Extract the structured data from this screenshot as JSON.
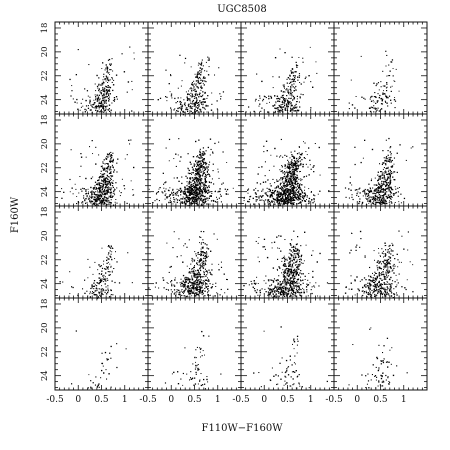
{
  "chart_data": {
    "type": "scatter",
    "title": "UGC8508",
    "xlabel": "F110W−F160W",
    "ylabel": "F160W",
    "xlim": [
      -0.5,
      1.5
    ],
    "ylim": [
      25.2,
      17.5
    ],
    "y_inverted": true,
    "grid": false,
    "layout": {
      "rows": 4,
      "cols": 4,
      "shared_axes": true
    },
    "x_tick_labels": [
      "-0.5",
      "0",
      "0.5",
      "1"
    ],
    "x_ticks": [
      -0.5,
      0,
      0.5,
      1
    ],
    "y_tick_labels": [
      "18",
      "20",
      "22",
      "24"
    ],
    "y_ticks": [
      18,
      20,
      22,
      24
    ],
    "panels": [
      {
        "row": 0,
        "col": 0,
        "density": 0.55,
        "spread": 0.9
      },
      {
        "row": 0,
        "col": 1,
        "density": 0.6,
        "spread": 1.0
      },
      {
        "row": 0,
        "col": 2,
        "density": 0.55,
        "spread": 0.95
      },
      {
        "row": 0,
        "col": 3,
        "density": 0.22,
        "spread": 1.0
      },
      {
        "row": 1,
        "col": 0,
        "density": 1.0,
        "spread": 1.0
      },
      {
        "row": 1,
        "col": 1,
        "density": 1.6,
        "spread": 1.25
      },
      {
        "row": 1,
        "col": 2,
        "density": 1.7,
        "spread": 1.3
      },
      {
        "row": 1,
        "col": 3,
        "density": 0.9,
        "spread": 1.0
      },
      {
        "row": 2,
        "col": 0,
        "density": 0.35,
        "spread": 1.0
      },
      {
        "row": 2,
        "col": 1,
        "density": 1.0,
        "spread": 1.15
      },
      {
        "row": 2,
        "col": 2,
        "density": 1.2,
        "spread": 1.3
      },
      {
        "row": 2,
        "col": 3,
        "density": 0.8,
        "spread": 1.15
      },
      {
        "row": 3,
        "col": 0,
        "density": 0.08,
        "spread": 1.0
      },
      {
        "row": 3,
        "col": 1,
        "density": 0.12,
        "spread": 1.0
      },
      {
        "row": 3,
        "col": 2,
        "density": 0.14,
        "spread": 1.0
      },
      {
        "row": 3,
        "col": 3,
        "density": 0.14,
        "spread": 1.0
      }
    ],
    "cmd_shape": {
      "rgb_tip_color": 0.7,
      "rgb_tip_mag": 20.4,
      "rgb_base_color": 0.45,
      "rgb_base_mag": 24.8,
      "faint_limit": 25.0,
      "base_points_per_panel": 500
    }
  }
}
